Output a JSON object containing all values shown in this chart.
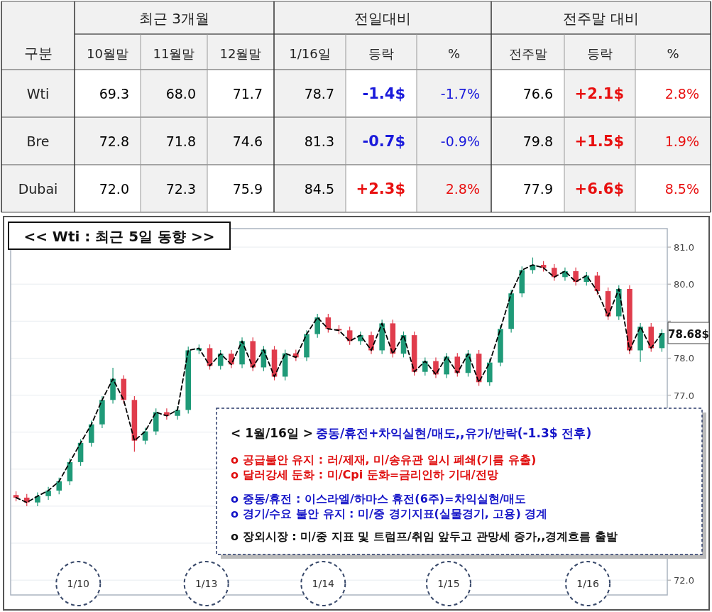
{
  "chart_data": [
    {
      "type": "other",
      "ylabel": "구분",
      "annotations": [
        "최근 3개월",
        "전일대비",
        "전주말 대비"
      ],
      "categories": [
        "10월말",
        "11월말",
        "12월말",
        "1/16일",
        "등락",
        "%",
        "전주말",
        "등락",
        "%"
      ],
      "y_categories": [
        "Wti",
        "Bre",
        "Dubai"
      ],
      "cell_labels": [
        [
          "69.3",
          "68.0",
          "71.7",
          "78.7",
          "-1.4$",
          "-1.7%",
          "76.6",
          "+2.1$",
          "2.8%"
        ],
        [
          "72.8",
          "71.8",
          "74.6",
          "81.3",
          "-0.7$",
          "-0.9%",
          "79.8",
          "+1.5$",
          "1.9%"
        ],
        [
          "72.0",
          "72.3",
          "75.9",
          "84.5",
          "+2.3$",
          "2.8%",
          "77.9",
          "+6.6$",
          "8.5%"
        ]
      ],
      "colors": [
        [
          "#000000",
          "#000000",
          "#000000",
          "#000000",
          "#1a1adb",
          "#1a1adb",
          "#000000",
          "#e81010",
          "#e81010"
        ],
        [
          "#000000",
          "#000000",
          "#000000",
          "#000000",
          "#1a1adb",
          "#1a1adb",
          "#000000",
          "#e81010",
          "#e81010"
        ],
        [
          "#000000",
          "#000000",
          "#000000",
          "#000000",
          "#e81010",
          "#e81010",
          "#000000",
          "#e81010",
          "#e81010"
        ]
      ]
    },
    {
      "type": "candlestick",
      "title": "<< Wti : 최근 5일 동향 >>",
      "categories": [
        null,
        null,
        null,
        null,
        null,
        null,
        null,
        null,
        null,
        null,
        null,
        null,
        null,
        null,
        null,
        null,
        null,
        null,
        null,
        null,
        null,
        null,
        null,
        null,
        null,
        null,
        null,
        null,
        null,
        null,
        null,
        null,
        null,
        null,
        null,
        null,
        null,
        null,
        null,
        null,
        null,
        null,
        null,
        null,
        null,
        null,
        null,
        null,
        null,
        null,
        null,
        null,
        null,
        null,
        null,
        null,
        null,
        null,
        null,
        null,
        null
      ],
      "ohlc": [
        [
          74.3,
          74.4,
          74.13,
          74.23
        ],
        [
          74.23,
          74.33,
          74.0,
          74.1
        ],
        [
          74.1,
          74.37,
          74.0,
          74.27
        ],
        [
          74.27,
          74.52,
          74.17,
          74.42
        ],
        [
          74.42,
          74.77,
          74.32,
          74.67
        ],
        [
          74.67,
          75.29,
          74.57,
          75.19
        ],
        [
          75.19,
          75.81,
          75.09,
          75.71
        ],
        [
          75.71,
          76.31,
          75.61,
          76.21
        ],
        [
          76.21,
          76.97,
          76.11,
          76.87
        ],
        [
          76.87,
          77.74,
          76.77,
          77.44
        ],
        [
          77.44,
          77.54,
          76.77,
          76.87
        ],
        [
          76.87,
          76.97,
          75.47,
          75.77
        ],
        [
          75.77,
          76.12,
          75.67,
          76.02
        ],
        [
          76.02,
          76.64,
          75.92,
          76.54
        ],
        [
          76.54,
          76.64,
          76.34,
          76.44
        ],
        [
          76.44,
          76.7,
          76.34,
          76.6
        ],
        [
          76.6,
          78.31,
          76.5,
          78.21
        ],
        [
          78.21,
          78.37,
          78.11,
          78.27
        ],
        [
          78.27,
          78.37,
          77.69,
          77.79
        ],
        [
          77.79,
          78.22,
          77.69,
          78.12
        ],
        [
          78.12,
          78.22,
          77.73,
          77.83
        ],
        [
          77.83,
          78.56,
          77.73,
          78.46
        ],
        [
          78.46,
          78.56,
          77.65,
          77.75
        ],
        [
          77.75,
          78.33,
          77.65,
          78.23
        ],
        [
          78.23,
          78.33,
          77.4,
          77.5
        ],
        [
          77.5,
          78.23,
          77.4,
          78.13
        ],
        [
          78.13,
          78.23,
          77.92,
          78.02
        ],
        [
          78.02,
          78.75,
          77.92,
          78.65
        ],
        [
          78.65,
          79.2,
          78.55,
          79.1
        ],
        [
          79.1,
          79.2,
          78.69,
          78.79
        ],
        [
          78.79,
          78.89,
          78.65,
          78.75
        ],
        [
          78.75,
          78.85,
          78.36,
          78.46
        ],
        [
          78.46,
          78.72,
          78.36,
          78.62
        ],
        [
          78.62,
          78.72,
          78.11,
          78.21
        ],
        [
          78.21,
          79.04,
          78.11,
          78.94
        ],
        [
          78.94,
          79.04,
          78.02,
          78.12
        ],
        [
          78.12,
          78.72,
          78.02,
          78.62
        ],
        [
          78.62,
          78.72,
          77.53,
          77.63
        ],
        [
          77.63,
          78.02,
          77.53,
          77.92
        ],
        [
          77.92,
          78.02,
          77.46,
          77.56
        ],
        [
          77.56,
          78.14,
          77.46,
          78.04
        ],
        [
          78.04,
          78.14,
          77.5,
          77.6
        ],
        [
          77.6,
          78.22,
          77.5,
          78.12
        ],
        [
          78.12,
          78.22,
          77.25,
          77.35
        ],
        [
          77.35,
          77.98,
          77.25,
          77.88
        ],
        [
          77.88,
          78.89,
          77.78,
          78.79
        ],
        [
          78.79,
          79.85,
          78.69,
          79.75
        ],
        [
          79.75,
          80.48,
          79.65,
          80.38
        ],
        [
          80.38,
          80.72,
          80.28,
          80.52
        ],
        [
          80.52,
          80.62,
          80.34,
          80.44
        ],
        [
          80.44,
          80.54,
          80.09,
          80.19
        ],
        [
          80.19,
          80.45,
          80.09,
          80.35
        ],
        [
          80.35,
          80.45,
          79.96,
          80.06
        ],
        [
          80.06,
          80.33,
          79.96,
          80.23
        ],
        [
          80.23,
          80.33,
          79.71,
          79.81
        ],
        [
          79.81,
          79.91,
          79.03,
          79.13
        ],
        [
          79.13,
          79.97,
          79.03,
          79.87
        ],
        [
          79.87,
          79.97,
          78.11,
          78.21
        ],
        [
          78.21,
          78.95,
          77.9,
          78.85
        ],
        [
          78.85,
          78.95,
          78.17,
          78.27
        ],
        [
          78.27,
          78.78,
          78.17,
          78.68
        ]
      ],
      "series": [
        {
          "type": "line",
          "color": "#000000",
          "line_style": "dashed",
          "values": [
            74.23,
            74.1,
            74.27,
            74.42,
            74.67,
            75.19,
            75.71,
            76.21,
            76.87,
            77.44,
            76.87,
            75.77,
            76.02,
            76.54,
            76.44,
            76.6,
            78.21,
            78.27,
            77.79,
            78.12,
            77.83,
            78.46,
            77.75,
            78.23,
            77.5,
            78.13,
            78.02,
            78.65,
            79.1,
            78.79,
            78.75,
            78.46,
            78.62,
            78.21,
            78.94,
            78.12,
            78.62,
            77.63,
            77.92,
            77.56,
            78.04,
            77.6,
            78.12,
            77.35,
            77.88,
            78.79,
            79.75,
            80.38,
            80.52,
            80.44,
            80.19,
            80.35,
            80.06,
            80.23,
            79.81,
            79.13,
            79.87,
            78.21,
            78.85,
            78.27,
            78.68
          ]
        }
      ],
      "ylim": [
        71.6,
        81.5
      ],
      "yticks": [
        {
          "value": 72,
          "label": "72.0"
        },
        {
          "value": 73,
          "label": null
        },
        {
          "value": 74,
          "label": null
        },
        {
          "value": 75,
          "label": null
        },
        {
          "value": 76,
          "label": null
        },
        {
          "value": 77,
          "label": "77.0"
        },
        {
          "value": 78,
          "label": "78.0"
        },
        {
          "value": 79,
          "label": null
        },
        {
          "value": 80,
          "label": "80.0"
        },
        {
          "value": 81,
          "label": "81.0"
        }
      ],
      "grid": "y",
      "annotations": [
        "< 1월/16일 >",
        "중동/휴전+차익실현/매도,,유가/반락(-1.3$ 전후)",
        "o 공급불안 유지 : 러/제재, 미/송유관 일시 폐쇄(기름 유출)",
        "o 달러강세 둔화 : 미/Cpi 둔화=금리인하 기대/전망",
        "o 중동/휴전 : 이스라엘/하마스 휴전(6주)=차익실현/매도",
        "o 경기/수요 불안 유지 : 미/중 경기지표(실물경기, 고용) 경계",
        "o 장외시장 : 미/중 지표 및 트럼프/취임 앞두고 관망세 증가,,경계흐름 출발",
        "1/10",
        "1/13",
        "1/14",
        "1/15",
        "1/16",
        "78.68$"
      ]
    }
  ]
}
